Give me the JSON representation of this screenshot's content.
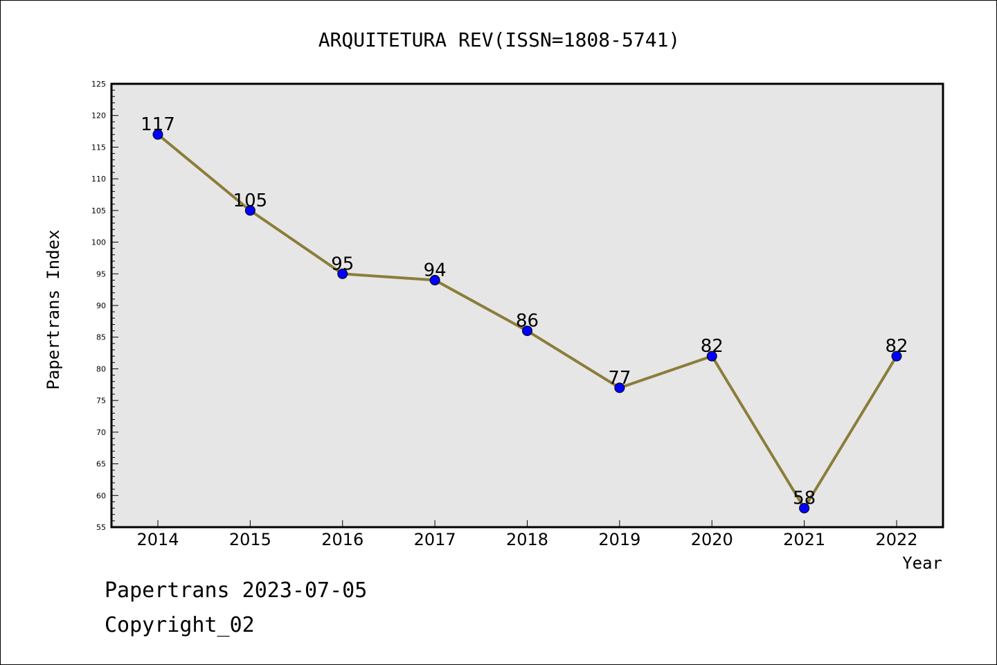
{
  "chart_data": {
    "type": "line",
    "title": "ARQUITETURA REV(ISSN=1808-5741)",
    "xlabel": "Year",
    "ylabel": "Papertrans Index",
    "categories": [
      "2014",
      "2015",
      "2016",
      "2017",
      "2018",
      "2019",
      "2020",
      "2021",
      "2022"
    ],
    "series": [
      {
        "values": [
          117,
          105,
          95,
          94,
          86,
          77,
          82,
          58,
          82
        ]
      }
    ],
    "data_labels": [
      "117",
      "105",
      "95",
      "94",
      "86",
      "77",
      "82",
      "58",
      "82"
    ],
    "ylim": [
      55,
      125
    ],
    "yticks": [
      55,
      60,
      65,
      70,
      75,
      80,
      85,
      90,
      95,
      100,
      105,
      110,
      115,
      120,
      125
    ],
    "grid": false,
    "legend": "none",
    "colors": {
      "line": "#8b7d3a",
      "marker": "#0000ff",
      "plot_background": "#e6e6e6"
    }
  },
  "footer": {
    "line1": "Papertrans 2023-07-05",
    "line2": "Copyright_02"
  }
}
